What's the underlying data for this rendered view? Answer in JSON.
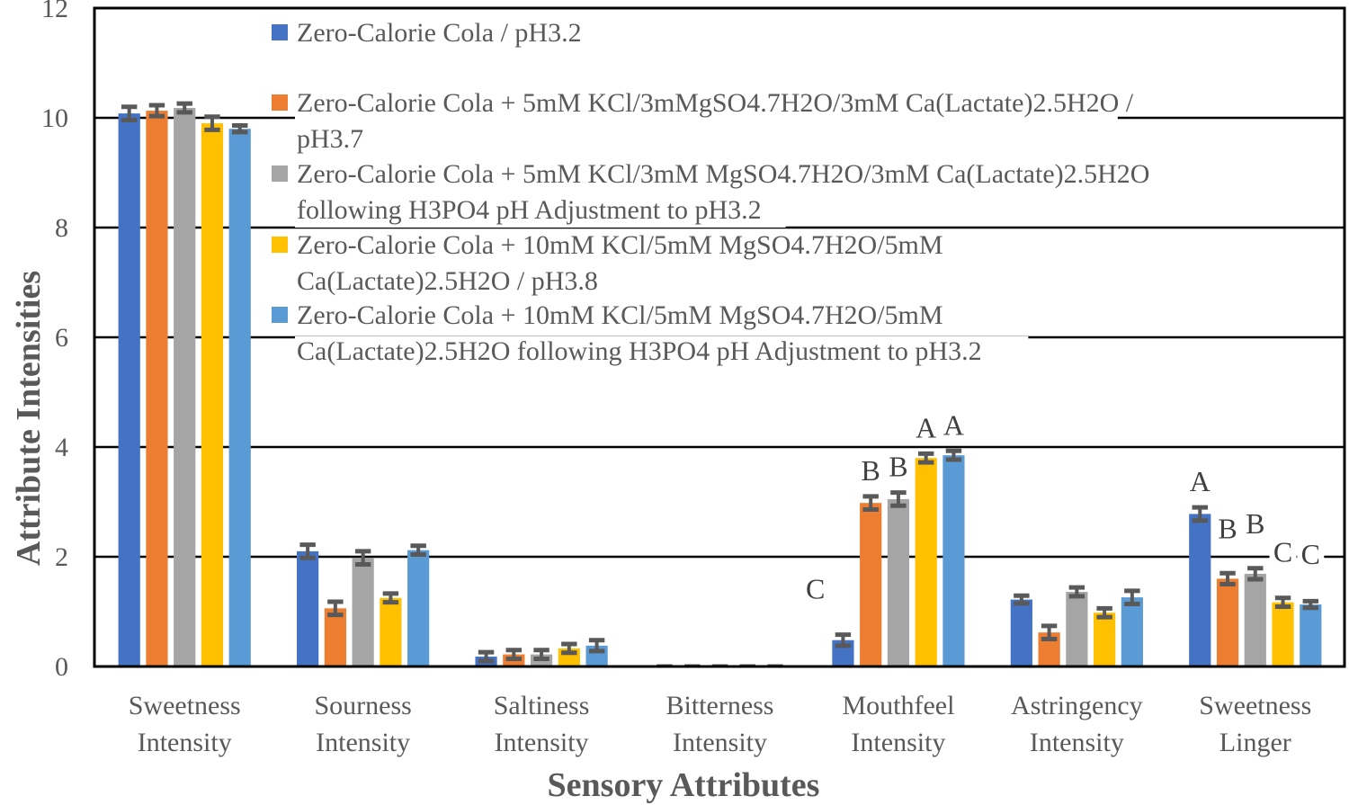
{
  "chart_data": {
    "type": "bar",
    "title": "",
    "xlabel": "Sensory Attributes",
    "ylabel": "Attribute Intensities",
    "ylim": [
      0,
      12
    ],
    "yticks": [
      "0",
      "2",
      "4",
      "6",
      "8",
      "10",
      "12"
    ],
    "grid": true,
    "legend_position": "top-center",
    "categories": [
      [
        "Sweetness",
        "Intensity"
      ],
      [
        "Sourness",
        "Intensity"
      ],
      [
        "Saltiness",
        "Intensity"
      ],
      [
        "Bitterness",
        "Intensity"
      ],
      [
        "Mouthfeel",
        "Intensity"
      ],
      [
        "Astringency",
        "Intensity"
      ],
      [
        "Sweetness",
        "Linger"
      ]
    ],
    "series": [
      {
        "name_lines": [
          "Zero-Calorie Cola / pH3.2"
        ],
        "color": "#4472C4",
        "values": [
          10.08,
          2.1,
          0.18,
          0.0,
          0.48,
          1.22,
          2.78
        ],
        "errors": [
          0.12,
          0.12,
          0.08,
          0.0,
          0.1,
          0.07,
          0.12
        ]
      },
      {
        "name_lines": [
          "Zero-Calorie Cola + 5mM KCl/3mMgSO4.7H2O/3mM Ca(Lactate)2.5H2O /",
          "pH3.7"
        ],
        "color": "#ED7D31",
        "values": [
          10.13,
          1.06,
          0.22,
          0.0,
          2.98,
          0.62,
          1.6
        ],
        "errors": [
          0.1,
          0.12,
          0.08,
          0.0,
          0.12,
          0.12,
          0.1
        ]
      },
      {
        "name_lines": [
          "Zero-Calorie Cola + 5mM KCl/3mM MgSO4.7H2O/3mM Ca(Lactate)2.5H2O",
          "following H3PO4 pH Adjustment to pH3.2"
        ],
        "color": "#A5A5A5",
        "values": [
          10.18,
          1.98,
          0.22,
          0.0,
          3.05,
          1.36,
          1.69
        ],
        "errors": [
          0.08,
          0.12,
          0.08,
          0.0,
          0.12,
          0.08,
          0.1
        ]
      },
      {
        "name_lines": [
          "Zero-Calorie Cola + 10mM KCl/5mM MgSO4.7H2O/5mM",
          "Ca(Lactate)2.5H2O / pH3.8"
        ],
        "color": "#FFC000",
        "values": [
          9.9,
          1.25,
          0.33,
          0.0,
          3.8,
          0.98,
          1.17
        ],
        "errors": [
          0.12,
          0.08,
          0.08,
          0.0,
          0.08,
          0.08,
          0.08
        ]
      },
      {
        "name_lines": [
          "Zero-Calorie Cola + 10mM KCl/5mM MgSO4.7H2O/5mM",
          "Ca(Lactate)2.5H2O  following H3PO4 pH Adjustment to pH3.2"
        ],
        "color": "#5B9BD5",
        "values": [
          9.8,
          2.12,
          0.38,
          0.0,
          3.85,
          1.26,
          1.13
        ],
        "errors": [
          0.06,
          0.08,
          0.1,
          0.0,
          0.08,
          0.12,
          0.06
        ]
      }
    ],
    "annotations": [
      {
        "category": 4,
        "series": 0,
        "text": "C"
      },
      {
        "category": 4,
        "series": 1,
        "text": "B"
      },
      {
        "category": 4,
        "series": 2,
        "text": "B"
      },
      {
        "category": 4,
        "series": 3,
        "text": "A"
      },
      {
        "category": 4,
        "series": 4,
        "text": "A"
      },
      {
        "category": 6,
        "series": 0,
        "text": "A"
      },
      {
        "category": 6,
        "series": 1,
        "text": "B"
      },
      {
        "category": 6,
        "series": 2,
        "text": "B"
      },
      {
        "category": 6,
        "series": 3,
        "text": "C"
      },
      {
        "category": 6,
        "series": 4,
        "text": "C"
      }
    ]
  }
}
